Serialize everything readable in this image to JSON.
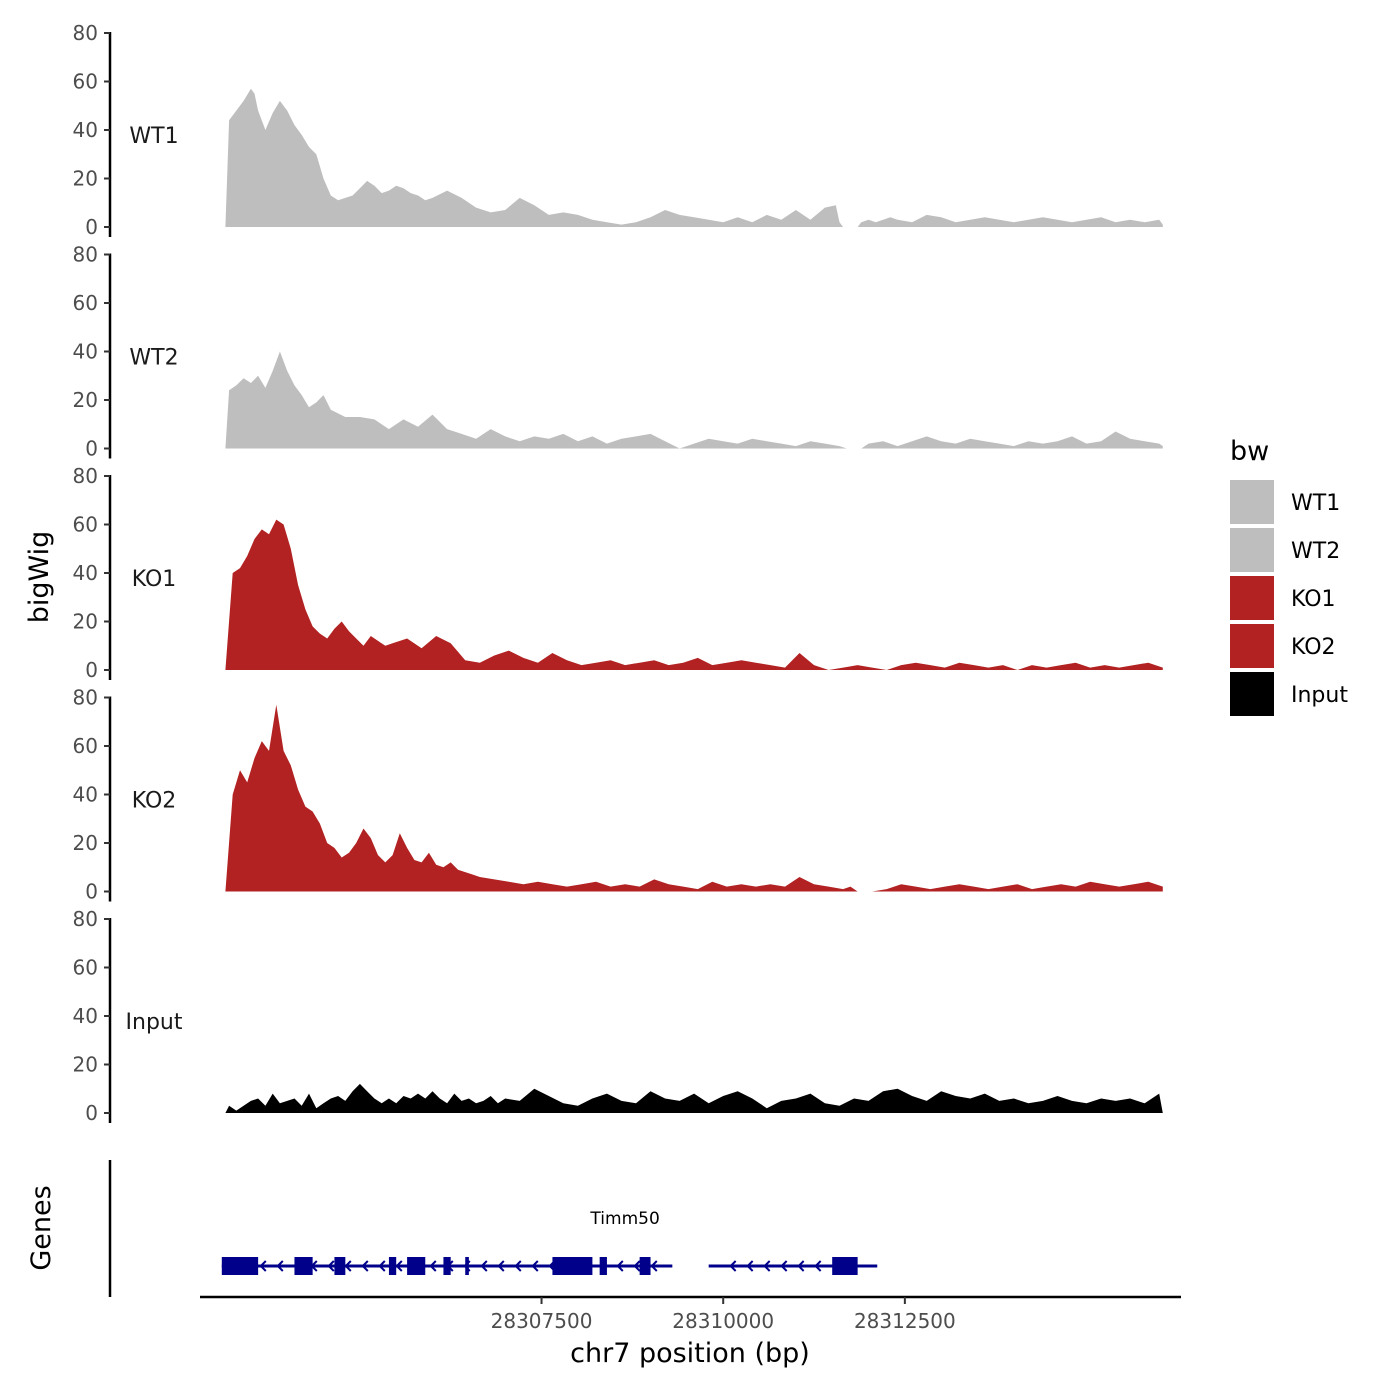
{
  "chart_data": {
    "type": "area",
    "y_axis_title": "bigWig",
    "genes_axis_title": "Genes",
    "x_axis_title": "chr7 position (bp)",
    "xlim": [
      28302800,
      28316300
    ],
    "x_ticks": [
      28307500,
      28310000,
      28312500
    ],
    "x_tick_labels": [
      "28307500",
      "28310000",
      "28312500"
    ],
    "ylim": [
      0,
      80
    ],
    "y_ticks": [
      0,
      20,
      40,
      60,
      80
    ],
    "y_tick_labels": [
      "0",
      "20",
      "40",
      "60",
      "80"
    ],
    "colors": {
      "WT1": "#bebebe",
      "WT2": "#bebebe",
      "KO1": "#b22222",
      "KO2": "#b22222",
      "Input": "#000000",
      "gene": "#00008b"
    },
    "tracks": [
      {
        "name": "WT1",
        "color": "#bebebe",
        "x": [
          28303150,
          28303200,
          28303300,
          28303400,
          28303500,
          28303550,
          28303600,
          28303700,
          28303800,
          28303900,
          28304000,
          28304100,
          28304200,
          28304300,
          28304400,
          28304500,
          28304600,
          28304700,
          28304800,
          28304900,
          28305000,
          28305100,
          28305200,
          28305300,
          28305400,
          28305500,
          28305600,
          28305700,
          28305800,
          28305900,
          28306000,
          28306200,
          28306400,
          28306600,
          28306800,
          28307000,
          28307200,
          28307400,
          28307600,
          28307800,
          28308000,
          28308200,
          28308400,
          28308600,
          28308800,
          28309000,
          28309200,
          28309400,
          28309600,
          28309800,
          28310000,
          28310200,
          28310400,
          28310600,
          28310800,
          28311000,
          28311200,
          28311400,
          28311550,
          28311600,
          28311650,
          28311700,
          28311800,
          28311850,
          28311900,
          28312000,
          28312100,
          28312200,
          28312300,
          28312400,
          28312600,
          28312800,
          28313000,
          28313200,
          28313400,
          28313600,
          28313800,
          28314000,
          28314200,
          28314400,
          28314600,
          28314800,
          28315000,
          28315200,
          28315400,
          28315600,
          28315800,
          28316000,
          28316050
        ],
        "y": [
          0,
          44,
          48,
          52,
          57,
          55,
          48,
          40,
          47,
          52,
          48,
          42,
          38,
          33,
          30,
          20,
          13,
          11,
          12,
          13,
          16,
          19,
          17,
          14,
          15,
          17,
          16,
          14,
          13,
          11,
          12,
          15,
          12,
          8,
          6,
          7,
          12,
          9,
          5,
          6,
          5,
          3,
          2,
          1,
          2,
          4,
          7,
          5,
          4,
          3,
          2,
          4,
          2,
          5,
          3,
          7,
          3,
          8,
          9,
          2,
          0,
          0,
          0,
          0,
          2,
          3,
          2,
          3,
          4,
          3,
          2,
          5,
          4,
          2,
          3,
          4,
          3,
          2,
          3,
          4,
          3,
          2,
          3,
          4,
          2,
          3,
          2,
          3,
          1
        ]
      },
      {
        "name": "WT2",
        "color": "#bebebe",
        "x": [
          28303150,
          28303200,
          28303300,
          28303400,
          28303500,
          28303600,
          28303700,
          28303800,
          28303900,
          28304000,
          28304100,
          28304200,
          28304300,
          28304400,
          28304500,
          28304600,
          28304800,
          28305000,
          28305200,
          28305400,
          28305600,
          28305800,
          28306000,
          28306200,
          28306400,
          28306600,
          28306800,
          28307000,
          28307200,
          28307400,
          28307600,
          28307800,
          28308000,
          28308200,
          28308400,
          28308600,
          28308800,
          28309000,
          28309200,
          28309400,
          28309600,
          28309800,
          28310000,
          28310200,
          28310400,
          28310600,
          28310800,
          28311000,
          28311200,
          28311400,
          28311600,
          28311700,
          28311800,
          28311900,
          28312000,
          28312200,
          28312400,
          28312600,
          28312800,
          28313000,
          28313200,
          28313400,
          28313600,
          28313800,
          28314000,
          28314200,
          28314400,
          28314600,
          28314800,
          28315000,
          28315200,
          28315400,
          28315600,
          28315800,
          28316000,
          28316050
        ],
        "y": [
          0,
          24,
          26,
          29,
          27,
          30,
          25,
          32,
          40,
          32,
          26,
          22,
          17,
          19,
          22,
          16,
          13,
          13,
          12,
          8,
          12,
          9,
          14,
          8,
          6,
          4,
          8,
          5,
          3,
          5,
          4,
          6,
          3,
          5,
          2,
          4,
          5,
          6,
          3,
          0,
          2,
          4,
          3,
          2,
          4,
          3,
          2,
          1,
          3,
          2,
          1,
          0,
          0,
          0,
          2,
          3,
          1,
          3,
          5,
          3,
          2,
          4,
          3,
          2,
          1,
          3,
          2,
          3,
          5,
          2,
          3,
          7,
          4,
          3,
          2,
          1
        ]
      },
      {
        "name": "KO1",
        "color": "#b22222",
        "x": [
          28303150,
          28303250,
          28303350,
          28303450,
          28303550,
          28303650,
          28303750,
          28303850,
          28303950,
          28304050,
          28304150,
          28304250,
          28304350,
          28304450,
          28304550,
          28304650,
          28304750,
          28304850,
          28304950,
          28305050,
          28305150,
          28305250,
          28305350,
          28305450,
          28305650,
          28305850,
          28306050,
          28306250,
          28306450,
          28306650,
          28306850,
          28307050,
          28307250,
          28307450,
          28307650,
          28307850,
          28308050,
          28308250,
          28308450,
          28308650,
          28308850,
          28309050,
          28309250,
          28309450,
          28309650,
          28309850,
          28310050,
          28310250,
          28310450,
          28310650,
          28310850,
          28311050,
          28311250,
          28311450,
          28311650,
          28311850,
          28312050,
          28312250,
          28312450,
          28312650,
          28312850,
          28313050,
          28313250,
          28313450,
          28313650,
          28313850,
          28314050,
          28314250,
          28314450,
          28314650,
          28314850,
          28315050,
          28315250,
          28315450,
          28315650,
          28315850,
          28316050
        ],
        "y": [
          0,
          40,
          42,
          47,
          54,
          58,
          56,
          62,
          60,
          50,
          35,
          25,
          18,
          15,
          13,
          17,
          20,
          16,
          13,
          10,
          14,
          12,
          10,
          11,
          13,
          9,
          14,
          11,
          4,
          3,
          6,
          8,
          5,
          3,
          7,
          4,
          2,
          3,
          4,
          2,
          3,
          4,
          2,
          3,
          5,
          2,
          3,
          4,
          3,
          2,
          1,
          7,
          2,
          0,
          1,
          2,
          1,
          0,
          2,
          3,
          2,
          1,
          3,
          2,
          1,
          2,
          0,
          2,
          1,
          2,
          3,
          1,
          2,
          1,
          2,
          3,
          1
        ]
      },
      {
        "name": "KO2",
        "color": "#b22222",
        "x": [
          28303150,
          28303250,
          28303350,
          28303450,
          28303550,
          28303650,
          28303750,
          28303850,
          28303950,
          28304050,
          28304150,
          28304250,
          28304350,
          28304450,
          28304550,
          28304650,
          28304750,
          28304850,
          28304950,
          28305050,
          28305150,
          28305250,
          28305350,
          28305450,
          28305550,
          28305650,
          28305750,
          28305850,
          28305950,
          28306050,
          28306150,
          28306250,
          28306350,
          28306450,
          28306550,
          28306650,
          28306850,
          28307050,
          28307250,
          28307450,
          28307650,
          28307850,
          28308050,
          28308250,
          28308450,
          28308650,
          28308850,
          28309050,
          28309250,
          28309450,
          28309650,
          28309850,
          28310050,
          28310250,
          28310450,
          28310650,
          28310850,
          28311050,
          28311250,
          28311450,
          28311650,
          28311750,
          28311850,
          28311950,
          28312050,
          28312250,
          28312450,
          28312650,
          28312850,
          28313050,
          28313250,
          28313450,
          28313650,
          28313850,
          28314050,
          28314250,
          28314450,
          28314650,
          28314850,
          28315050,
          28315250,
          28315450,
          28315650,
          28315850,
          28316050
        ],
        "y": [
          0,
          40,
          50,
          45,
          55,
          62,
          58,
          77,
          58,
          52,
          42,
          35,
          33,
          28,
          20,
          18,
          14,
          16,
          20,
          26,
          22,
          15,
          12,
          15,
          24,
          18,
          13,
          12,
          16,
          11,
          10,
          12,
          9,
          8,
          7,
          6,
          5,
          4,
          3,
          4,
          3,
          2,
          3,
          4,
          2,
          3,
          2,
          5,
          3,
          2,
          1,
          4,
          2,
          3,
          2,
          3,
          2,
          6,
          3,
          2,
          1,
          2,
          0,
          0,
          0,
          1,
          3,
          2,
          1,
          2,
          3,
          2,
          1,
          2,
          3,
          1,
          2,
          3,
          2,
          4,
          3,
          2,
          3,
          4,
          2
        ]
      },
      {
        "name": "Input",
        "color": "#000000",
        "x": [
          28303150,
          28303200,
          28303300,
          28303400,
          28303500,
          28303600,
          28303700,
          28303800,
          28303900,
          28304000,
          28304100,
          28304200,
          28304300,
          28304400,
          28304500,
          28304600,
          28304700,
          28304800,
          28304900,
          28305000,
          28305100,
          28305200,
          28305300,
          28305400,
          28305500,
          28305600,
          28305700,
          28305800,
          28305900,
          28306000,
          28306100,
          28306200,
          28306300,
          28306400,
          28306500,
          28306600,
          28306700,
          28306800,
          28306900,
          28307000,
          28307200,
          28307400,
          28307600,
          28307800,
          28308000,
          28308200,
          28308400,
          28308600,
          28308800,
          28309000,
          28309200,
          28309400,
          28309600,
          28309800,
          28310000,
          28310200,
          28310400,
          28310600,
          28310800,
          28311000,
          28311200,
          28311400,
          28311600,
          28311800,
          28312000,
          28312200,
          28312400,
          28312600,
          28312800,
          28313000,
          28313200,
          28313400,
          28313600,
          28313800,
          28314000,
          28314200,
          28314400,
          28314600,
          28314800,
          28315000,
          28315200,
          28315400,
          28315600,
          28315800,
          28316000,
          28316050
        ],
        "y": [
          0,
          3,
          1,
          3,
          5,
          6,
          3,
          8,
          4,
          5,
          6,
          3,
          8,
          2,
          4,
          6,
          7,
          5,
          9,
          12,
          9,
          6,
          4,
          6,
          4,
          7,
          6,
          8,
          6,
          9,
          6,
          4,
          8,
          5,
          6,
          4,
          5,
          7,
          4,
          6,
          5,
          10,
          7,
          4,
          3,
          6,
          8,
          5,
          4,
          9,
          6,
          5,
          8,
          4,
          7,
          9,
          6,
          2,
          5,
          6,
          8,
          4,
          3,
          6,
          5,
          9,
          10,
          7,
          5,
          9,
          7,
          6,
          8,
          5,
          6,
          4,
          5,
          7,
          5,
          4,
          6,
          5,
          6,
          4,
          8,
          0
        ]
      }
    ],
    "gene": {
      "name": "Timm50",
      "label_x": 28308650,
      "start": 28303100,
      "end": 28309300,
      "strand": "-",
      "line_segments": [
        [
          28303100,
          28309300
        ],
        [
          28309800,
          28312120
        ]
      ],
      "exons": [
        [
          28303100,
          28303600
        ],
        [
          28304100,
          28304350
        ],
        [
          28304650,
          28304800
        ],
        [
          28305400,
          28305500
        ],
        [
          28305650,
          28305900
        ],
        [
          28306150,
          28306250
        ],
        [
          28306450,
          28306500
        ],
        [
          28307650,
          28308200
        ],
        [
          28308300,
          28308400
        ],
        [
          28308850,
          28309000
        ],
        [
          28311500,
          28311850
        ]
      ]
    }
  },
  "legend": {
    "title": "bw",
    "items": [
      {
        "label": "WT1",
        "color": "#bebebe"
      },
      {
        "label": "WT2",
        "color": "#bebebe"
      },
      {
        "label": "KO1",
        "color": "#b22222"
      },
      {
        "label": "KO2",
        "color": "#b22222"
      },
      {
        "label": "Input",
        "color": "#000000"
      }
    ]
  }
}
